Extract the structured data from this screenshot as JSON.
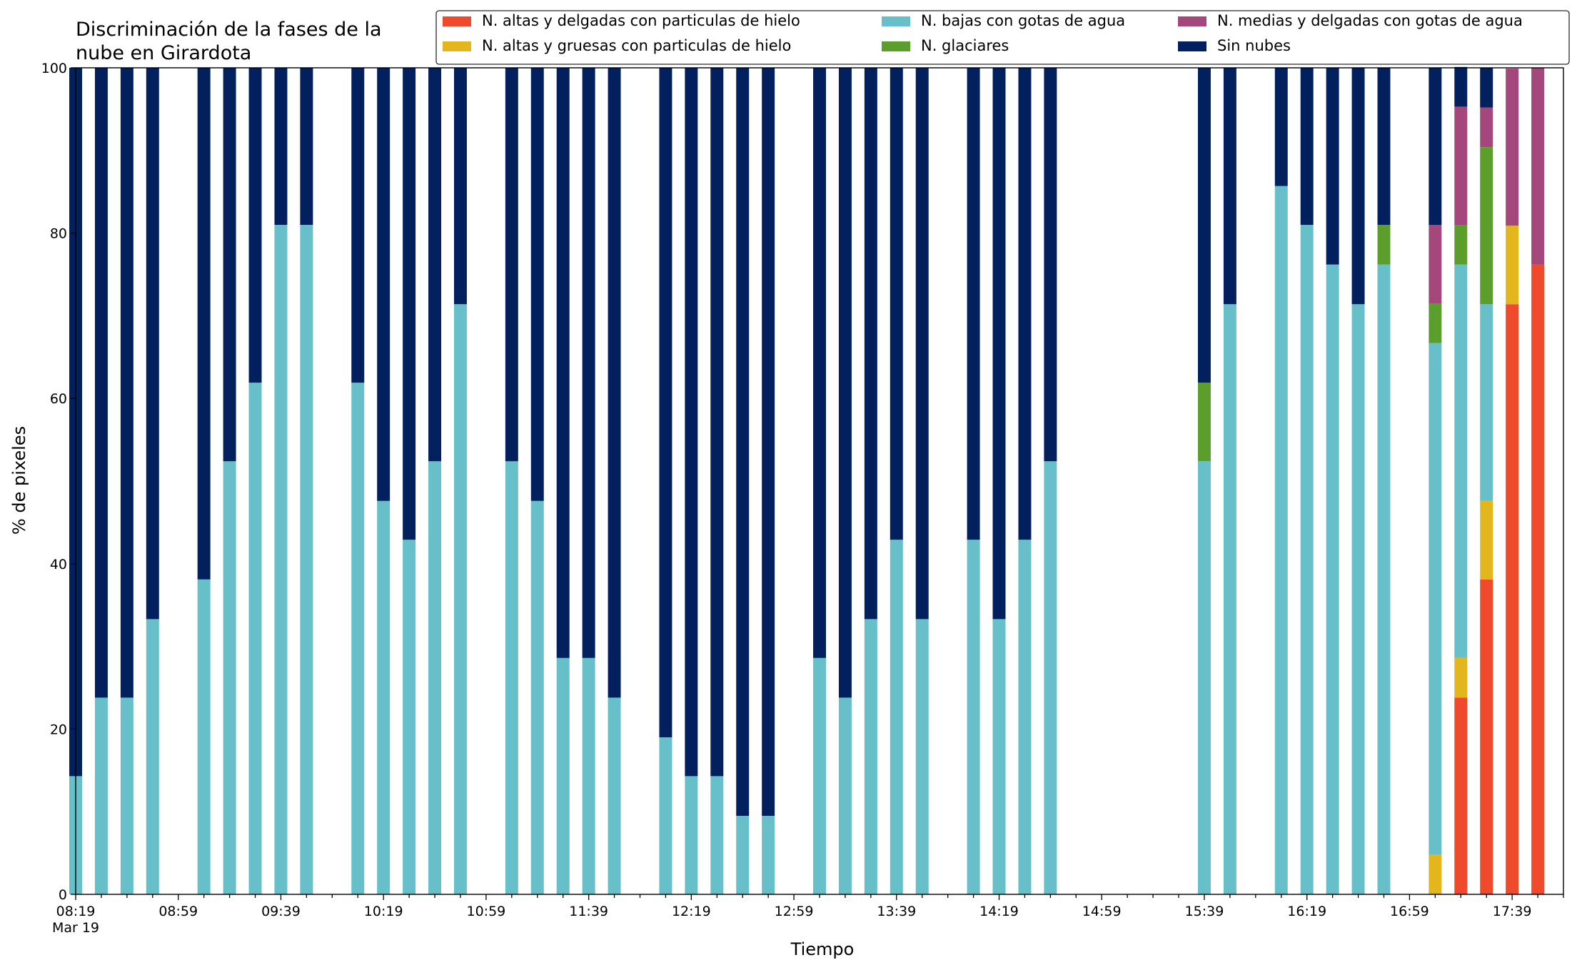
{
  "chart_data": {
    "type": "bar",
    "stacked": true,
    "title_lines": [
      "Discriminación de la fases de la",
      "nube en Girardota"
    ],
    "xlabel": "Tiempo",
    "ylabel": "% de pixeles",
    "ylim": [
      0,
      100
    ],
    "yticks": [
      0,
      20,
      40,
      60,
      80,
      100
    ],
    "grid": false,
    "legend_position": "top-right",
    "x_start": "08:19",
    "x_end": "17:59",
    "bar_width_minutes": 5,
    "xtick_labels": [
      {
        "time": "08:19",
        "label": "08:19",
        "sublabel": "Mar 19"
      },
      {
        "time": "08:59",
        "label": "08:59"
      },
      {
        "time": "09:39",
        "label": "09:39"
      },
      {
        "time": "10:19",
        "label": "10:19"
      },
      {
        "time": "10:59",
        "label": "10:59"
      },
      {
        "time": "11:39",
        "label": "11:39"
      },
      {
        "time": "12:19",
        "label": "12:19"
      },
      {
        "time": "12:59",
        "label": "12:59"
      },
      {
        "time": "13:39",
        "label": "13:39"
      },
      {
        "time": "14:19",
        "label": "14:19"
      },
      {
        "time": "14:59",
        "label": "14:59"
      },
      {
        "time": "15:39",
        "label": "15:39"
      },
      {
        "time": "16:19",
        "label": "16:19"
      },
      {
        "time": "16:59",
        "label": "16:59"
      },
      {
        "time": "17:39",
        "label": "17:39"
      }
    ],
    "legend_order": [
      "hielo_delgadas",
      "hielo_gruesas",
      "agua_bajas",
      "glaciares",
      "agua_medias",
      "sin_nubes"
    ],
    "series": [
      {
        "key": "hielo_delgadas",
        "name": "N. altas y delgadas con particulas de hielo",
        "color": "#ee4a2b"
      },
      {
        "key": "hielo_gruesas",
        "name": "N. altas y gruesas con particulas de hielo",
        "color": "#e3b61e"
      },
      {
        "key": "agua_bajas",
        "name": "N. bajas con gotas de agua",
        "color": "#67bfca"
      },
      {
        "key": "glaciares",
        "name": "N. glaciares",
        "color": "#5c9e2c"
      },
      {
        "key": "agua_medias",
        "name": "N. medias y delgadas con gotas de agua",
        "color": "#a3477c"
      },
      {
        "key": "sin_nubes",
        "name": "Sin nubes",
        "color": "#03205e"
      }
    ],
    "bars": [
      {
        "time": "08:19",
        "agua_bajas": 14.3,
        "sin_nubes": 85.7
      },
      {
        "time": "08:29",
        "agua_bajas": 23.8,
        "sin_nubes": 76.2
      },
      {
        "time": "08:39",
        "agua_bajas": 23.8,
        "sin_nubes": 76.2
      },
      {
        "time": "08:49",
        "agua_bajas": 33.3,
        "sin_nubes": 66.7
      },
      {
        "time": "09:09",
        "agua_bajas": 38.1,
        "sin_nubes": 61.9
      },
      {
        "time": "09:19",
        "agua_bajas": 52.4,
        "sin_nubes": 47.6
      },
      {
        "time": "09:29",
        "agua_bajas": 61.9,
        "sin_nubes": 38.1
      },
      {
        "time": "09:39",
        "agua_bajas": 81.0,
        "sin_nubes": 19.0
      },
      {
        "time": "09:49",
        "agua_bajas": 81.0,
        "sin_nubes": 19.0
      },
      {
        "time": "10:09",
        "agua_bajas": 61.9,
        "sin_nubes": 38.1
      },
      {
        "time": "10:19",
        "agua_bajas": 47.6,
        "sin_nubes": 52.4
      },
      {
        "time": "10:29",
        "agua_bajas": 42.9,
        "sin_nubes": 57.1
      },
      {
        "time": "10:39",
        "agua_bajas": 52.4,
        "sin_nubes": 47.6
      },
      {
        "time": "10:49",
        "agua_bajas": 71.4,
        "sin_nubes": 28.6
      },
      {
        "time": "11:09",
        "agua_bajas": 52.4,
        "sin_nubes": 47.6
      },
      {
        "time": "11:19",
        "agua_bajas": 47.6,
        "sin_nubes": 52.4
      },
      {
        "time": "11:29",
        "agua_bajas": 28.6,
        "sin_nubes": 71.4
      },
      {
        "time": "11:39",
        "agua_bajas": 28.6,
        "sin_nubes": 71.4
      },
      {
        "time": "11:49",
        "agua_bajas": 23.8,
        "sin_nubes": 76.2
      },
      {
        "time": "12:09",
        "agua_bajas": 19.0,
        "sin_nubes": 81.0
      },
      {
        "time": "12:19",
        "agua_bajas": 14.3,
        "sin_nubes": 85.7
      },
      {
        "time": "12:29",
        "agua_bajas": 14.3,
        "sin_nubes": 85.7
      },
      {
        "time": "12:39",
        "agua_bajas": 9.5,
        "sin_nubes": 90.5
      },
      {
        "time": "12:49",
        "agua_bajas": 9.5,
        "sin_nubes": 90.5
      },
      {
        "time": "13:09",
        "agua_bajas": 28.6,
        "sin_nubes": 71.4
      },
      {
        "time": "13:19",
        "agua_bajas": 23.8,
        "sin_nubes": 76.2
      },
      {
        "time": "13:29",
        "agua_bajas": 33.3,
        "sin_nubes": 66.7
      },
      {
        "time": "13:39",
        "agua_bajas": 42.9,
        "sin_nubes": 57.1
      },
      {
        "time": "13:49",
        "agua_bajas": 33.3,
        "sin_nubes": 66.7
      },
      {
        "time": "14:09",
        "agua_bajas": 42.9,
        "sin_nubes": 57.1
      },
      {
        "time": "14:19",
        "agua_bajas": 33.3,
        "sin_nubes": 66.7
      },
      {
        "time": "14:29",
        "agua_bajas": 42.9,
        "sin_nubes": 57.1
      },
      {
        "time": "14:39",
        "agua_bajas": 52.4,
        "sin_nubes": 47.6
      },
      {
        "time": "15:39",
        "agua_bajas": 52.4,
        "glaciares": 9.5,
        "sin_nubes": 38.1
      },
      {
        "time": "15:49",
        "agua_bajas": 71.4,
        "sin_nubes": 28.6
      },
      {
        "time": "16:09",
        "agua_bajas": 85.7,
        "sin_nubes": 14.3
      },
      {
        "time": "16:19",
        "agua_bajas": 81.0,
        "sin_nubes": 19.0
      },
      {
        "time": "16:29",
        "agua_bajas": 76.2,
        "sin_nubes": 23.8
      },
      {
        "time": "16:39",
        "agua_bajas": 71.4,
        "sin_nubes": 28.6
      },
      {
        "time": "16:49",
        "agua_bajas": 76.2,
        "glaciares": 4.8,
        "sin_nubes": 19.0
      },
      {
        "time": "17:09",
        "hielo_gruesas": 4.8,
        "agua_bajas": 61.9,
        "glaciares": 4.8,
        "agua_medias": 9.5,
        "sin_nubes": 19.0
      },
      {
        "time": "17:19",
        "hielo_delgadas": 23.8,
        "hielo_gruesas": 4.8,
        "agua_bajas": 47.6,
        "glaciares": 4.8,
        "agua_medias": 14.3,
        "sin_nubes": 4.8
      },
      {
        "time": "17:29",
        "hielo_delgadas": 38.1,
        "hielo_gruesas": 9.5,
        "agua_bajas": 23.8,
        "glaciares": 19.0,
        "agua_medias": 4.8,
        "sin_nubes": 4.8
      },
      {
        "time": "17:39",
        "hielo_delgadas": 71.4,
        "hielo_gruesas": 9.5,
        "agua_medias": 19.0
      },
      {
        "time": "17:49",
        "hielo_delgadas": 76.2,
        "agua_medias": 23.8
      }
    ]
  }
}
